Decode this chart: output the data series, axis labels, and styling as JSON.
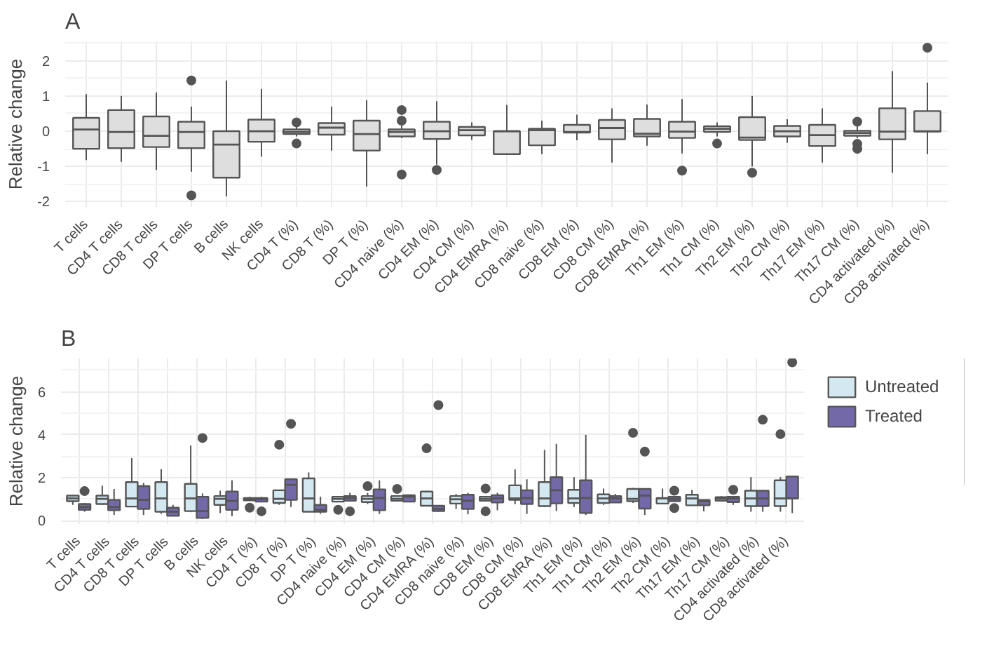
{
  "chart_data": [
    {
      "type": "box",
      "title": "A",
      "ylabel": "Relative change",
      "color": "#dedede",
      "ylim": [
        -2.15,
        2.55
      ],
      "yticks": [
        -2,
        -1,
        0,
        1,
        2
      ],
      "grid": true,
      "categories": [
        "T cells",
        "CD4 T cells",
        "CD8 T cells",
        "DP T cells",
        "B cells",
        "NK cells",
        "CD4 T (%)",
        "CD8 T (%)",
        "DP T (%)",
        "CD4 naive (%)",
        "CD4 EM (%)",
        "CD4 CM (%)",
        "CD4 EMRA (%)",
        "CD8 naive (%)",
        "CD8 EM (%)",
        "CD8 CM (%)",
        "CD8 EMRA (%)",
        "Th1 EM (%)",
        "Th1 CM (%)",
        "Th2 EM (%)",
        "Th2 CM (%)",
        "Th17 EM (%)",
        "Th17 CM (%)",
        "CD4 activated (%)",
        "CD8 activated (%)"
      ],
      "boxes": [
        {
          "low": -0.82,
          "q1": -0.5,
          "median": 0.05,
          "q3": 0.38,
          "high": 1.05
        },
        {
          "low": -0.87,
          "q1": -0.48,
          "median": -0.02,
          "q3": 0.6,
          "high": 1.0
        },
        {
          "low": -1.1,
          "q1": -0.45,
          "median": -0.13,
          "q3": 0.42,
          "high": 1.1
        },
        {
          "low": -1.15,
          "q1": -0.48,
          "median": -0.02,
          "q3": 0.27,
          "high": 0.7,
          "outliers": [
            1.44,
            -1.82
          ]
        },
        {
          "low": -1.85,
          "q1": -1.32,
          "median": -0.38,
          "q3": 0.0,
          "high": 1.44
        },
        {
          "low": -0.72,
          "q1": -0.3,
          "median": 0.0,
          "q3": 0.33,
          "high": 1.2
        },
        {
          "low": -0.15,
          "q1": -0.08,
          "median": -0.02,
          "q3": 0.05,
          "high": 0.12,
          "outliers": [
            0.25,
            -0.35
          ]
        },
        {
          "low": -0.55,
          "q1": -0.1,
          "median": 0.1,
          "q3": 0.23,
          "high": 0.7
        },
        {
          "low": -1.57,
          "q1": -0.55,
          "median": -0.08,
          "q3": 0.3,
          "high": 0.88
        },
        {
          "low": -0.2,
          "q1": -0.15,
          "median": -0.02,
          "q3": 0.05,
          "high": 0.2,
          "outliers": [
            0.6,
            0.3,
            -1.23
          ]
        },
        {
          "low": -0.95,
          "q1": -0.22,
          "median": 0.0,
          "q3": 0.27,
          "high": 0.85,
          "outliers": [
            -1.1
          ]
        },
        {
          "low": -0.25,
          "q1": -0.12,
          "median": 0.03,
          "q3": 0.12,
          "high": 0.25
        },
        {
          "low": -0.65,
          "q1": -0.65,
          "median": 0.0,
          "q3": 0.0,
          "high": 0.75
        },
        {
          "low": -0.65,
          "q1": -0.4,
          "median": 0.03,
          "q3": 0.07,
          "high": 0.3
        },
        {
          "low": -0.26,
          "q1": -0.04,
          "median": -0.02,
          "q3": 0.18,
          "high": 0.47
        },
        {
          "low": -0.89,
          "q1": -0.23,
          "median": 0.09,
          "q3": 0.32,
          "high": 0.65
        },
        {
          "low": -0.41,
          "q1": -0.15,
          "median": -0.07,
          "q3": 0.35,
          "high": 0.76
        },
        {
          "low": -0.63,
          "q1": -0.19,
          "median": -0.01,
          "q3": 0.27,
          "high": 0.91,
          "outliers": [
            -1.12
          ]
        },
        {
          "low": -0.15,
          "q1": -0.02,
          "median": 0.07,
          "q3": 0.14,
          "high": 0.25,
          "outliers": [
            -0.35
          ]
        },
        {
          "low": -1.0,
          "q1": -0.25,
          "median": -0.18,
          "q3": 0.4,
          "high": 1.0,
          "outliers": [
            -1.18
          ]
        },
        {
          "low": -0.33,
          "q1": -0.15,
          "median": 0.0,
          "q3": 0.15,
          "high": 0.34
        },
        {
          "low": -0.89,
          "q1": -0.42,
          "median": -0.11,
          "q3": 0.18,
          "high": 0.65
        },
        {
          "low": -0.2,
          "q1": -0.13,
          "median": -0.05,
          "q3": 0.01,
          "high": 0.14,
          "outliers": [
            0.27,
            -0.36,
            -0.5
          ]
        },
        {
          "low": -1.18,
          "q1": -0.23,
          "median": -0.01,
          "q3": 0.65,
          "high": 1.71
        },
        {
          "low": -0.65,
          "q1": -0.01,
          "median": 0.0,
          "q3": 0.57,
          "high": 1.38,
          "outliers": [
            2.37
          ]
        }
      ]
    },
    {
      "type": "box",
      "title": "B",
      "ylabel": "Relative change",
      "ylim": [
        -0.15,
        7.55
      ],
      "yticks": [
        0,
        2,
        4,
        6
      ],
      "grid": true,
      "legend": "right",
      "categories": [
        "T cells",
        "CD4 T cells",
        "CD8 T cells",
        "DP T cells",
        "B cells",
        "NK cells",
        "CD4 T (%)",
        "CD8 T (%)",
        "DP T (%)",
        "CD4 naive (%)",
        "CD4 EM (%)",
        "CD4 CM (%)",
        "CD4 EMRA (%)",
        "CD8 naive (%)",
        "CD8 EM (%)",
        "CD8 CM (%)",
        "CD8 EMRA (%)",
        "Th1 EM (%)",
        "Th1 CM (%)",
        "Th2 EM (%)",
        "Th2 CM (%)",
        "Th17 EM (%)",
        "Th17 CM (%)",
        "CD4 activated (%)",
        "CD8 activated (%)"
      ],
      "series": [
        {
          "name": "Untreated",
          "color": "#d3e8f0",
          "boxes": [
            {
              "low": 0.74,
              "q1": 0.91,
              "median": 1.04,
              "q3": 1.17,
              "high": 1.2
            },
            {
              "low": 0.74,
              "q1": 0.78,
              "median": 1.02,
              "q3": 1.17,
              "high": 1.63
            },
            {
              "low": 0.66,
              "q1": 0.66,
              "median": 1.04,
              "q3": 1.8,
              "high": 2.92
            },
            {
              "low": 0.32,
              "q1": 0.42,
              "median": 1.04,
              "q3": 1.8,
              "high": 2.4
            },
            {
              "low": 0.4,
              "q1": 0.45,
              "median": 1.04,
              "q3": 1.72,
              "high": 3.5
            },
            {
              "low": 0.36,
              "q1": 0.74,
              "median": 1.02,
              "q3": 1.15,
              "high": 1.4
            },
            {
              "low": 0.93,
              "q1": 0.95,
              "median": 1.02,
              "q3": 1.06,
              "high": 1.12,
              "outliers": [
                0.61
              ]
            },
            {
              "low": 0.74,
              "q1": 0.83,
              "median": 1.02,
              "q3": 1.42,
              "high": 1.42,
              "outliers": [
                3.54
              ]
            },
            {
              "low": 0.42,
              "q1": 0.42,
              "median": 1.04,
              "q3": 1.97,
              "high": 2.25
            },
            {
              "low": 0.89,
              "q1": 0.89,
              "median": 1.02,
              "q3": 1.12,
              "high": 1.15,
              "outliers": [
                0.51
              ]
            },
            {
              "low": 0.78,
              "q1": 0.87,
              "median": 1.02,
              "q3": 1.15,
              "high": 1.3,
              "outliers": [
                1.61
              ]
            },
            {
              "low": 0.93,
              "q1": 0.93,
              "median": 1.02,
              "q3": 1.15,
              "high": 1.15,
              "outliers": [
                1.48
              ]
            },
            {
              "low": 0.7,
              "q1": 0.7,
              "median": 1.04,
              "q3": 1.36,
              "high": 1.36,
              "outliers": [
                3.37
              ]
            },
            {
              "low": 0.55,
              "q1": 0.8,
              "median": 1.0,
              "q3": 1.15,
              "high": 1.25
            },
            {
              "low": 0.93,
              "q1": 0.93,
              "median": 1.02,
              "q3": 1.12,
              "high": 1.12,
              "outliers": [
                1.5,
                0.44
              ]
            },
            {
              "low": 0.78,
              "q1": 0.97,
              "median": 1.04,
              "q3": 1.65,
              "high": 2.39
            },
            {
              "low": 0.64,
              "q1": 0.68,
              "median": 1.04,
              "q3": 1.8,
              "high": 3.3
            },
            {
              "low": 0.64,
              "q1": 0.83,
              "median": 1.04,
              "q3": 1.44,
              "high": 2.03
            },
            {
              "low": 0.74,
              "q1": 0.83,
              "median": 1.04,
              "q3": 1.23,
              "high": 1.5
            },
            {
              "low": 0.83,
              "q1": 0.91,
              "median": 1.02,
              "q3": 1.48,
              "high": 1.53,
              "outliers": [
                4.09
              ]
            },
            {
              "low": 0.8,
              "q1": 0.8,
              "median": 1.04,
              "q3": 1.06,
              "high": 1.5
            },
            {
              "low": 0.72,
              "q1": 0.72,
              "median": 1.04,
              "q3": 1.21,
              "high": 1.44
            },
            {
              "low": 0.93,
              "q1": 0.93,
              "median": 1.02,
              "q3": 1.1,
              "high": 1.15
            },
            {
              "low": 0.42,
              "q1": 0.68,
              "median": 1.04,
              "q3": 1.4,
              "high": 2.03
            },
            {
              "low": 0.42,
              "q1": 0.68,
              "median": 1.04,
              "q3": 1.88,
              "high": 2.03,
              "outliers": [
                4.03
              ]
            }
          ]
        },
        {
          "name": "Treated",
          "color": "#7469a8",
          "boxes": [
            {
              "low": 0.42,
              "q1": 0.51,
              "median": 0.64,
              "q3": 0.78,
              "high": 0.83,
              "outliers": [
                1.38
              ]
            },
            {
              "low": 0.27,
              "q1": 0.49,
              "median": 0.64,
              "q3": 0.97,
              "high": 1.48
            },
            {
              "low": 0.27,
              "q1": 0.55,
              "median": 0.97,
              "q3": 1.61,
              "high": 1.76
            },
            {
              "low": 0.21,
              "q1": 0.23,
              "median": 0.42,
              "q3": 0.61,
              "high": 0.74
            },
            {
              "low": 0.08,
              "q1": 0.13,
              "median": 0.45,
              "q3": 1.12,
              "high": 1.27,
              "outliers": [
                3.85
              ]
            },
            {
              "low": 0.21,
              "q1": 0.51,
              "median": 0.93,
              "q3": 1.36,
              "high": 1.88
            },
            {
              "low": 0.89,
              "q1": 0.89,
              "median": 1.0,
              "q3": 1.06,
              "high": 1.12,
              "outliers": [
                0.44
              ]
            },
            {
              "low": 0.64,
              "q1": 0.97,
              "median": 1.67,
              "q3": 1.93,
              "high": 1.93,
              "outliers": [
                4.51
              ]
            },
            {
              "low": 0.32,
              "q1": 0.42,
              "median": 0.51,
              "q3": 0.74,
              "high": 1.12
            },
            {
              "low": 0.89,
              "q1": 0.93,
              "median": 1.06,
              "q3": 1.15,
              "high": 1.3,
              "outliers": [
                0.44
              ]
            },
            {
              "low": 0.32,
              "q1": 0.49,
              "median": 1.06,
              "q3": 1.46,
              "high": 1.88
            },
            {
              "low": 0.89,
              "q1": 0.89,
              "median": 1.12,
              "q3": 1.19,
              "high": 1.19
            },
            {
              "low": 0.42,
              "q1": 0.45,
              "median": 0.55,
              "q3": 0.7,
              "high": 0.7,
              "outliers": [
                5.38
              ]
            },
            {
              "low": 0.3,
              "q1": 0.55,
              "median": 0.93,
              "q3": 1.21,
              "high": 1.3
            },
            {
              "low": 0.49,
              "q1": 0.85,
              "median": 1.04,
              "q3": 1.19,
              "high": 1.3
            },
            {
              "low": 0.32,
              "q1": 0.78,
              "median": 1.06,
              "q3": 1.42,
              "high": 1.93
            },
            {
              "low": 0.45,
              "q1": 0.81,
              "median": 1.42,
              "q3": 2.03,
              "high": 3.58
            },
            {
              "low": 0.27,
              "q1": 0.36,
              "median": 1.06,
              "q3": 1.88,
              "high": 4.0
            },
            {
              "low": 0.85,
              "q1": 0.85,
              "median": 1.04,
              "q3": 1.15,
              "high": 1.25
            },
            {
              "low": 0.27,
              "q1": 0.57,
              "median": 1.17,
              "q3": 1.48,
              "high": 1.48,
              "outliers": [
                3.22
              ]
            },
            {
              "low": 0.91,
              "q1": 0.91,
              "median": 1.02,
              "q3": 1.12,
              "high": 1.12,
              "outliers": [
                1.4,
                0.59
              ]
            },
            {
              "low": 0.44,
              "q1": 0.72,
              "median": 0.91,
              "q3": 0.97,
              "high": 0.97
            },
            {
              "low": 0.74,
              "q1": 0.87,
              "median": 1.04,
              "q3": 1.12,
              "high": 1.12,
              "outliers": [
                1.44
              ]
            },
            {
              "low": 0.42,
              "q1": 0.68,
              "median": 1.04,
              "q3": 1.4,
              "high": 1.4,
              "outliers": [
                4.7
              ]
            },
            {
              "low": 0.36,
              "q1": 1.04,
              "median": 1.04,
              "q3": 2.06,
              "high": 2.06,
              "outliers": [
                7.37
              ]
            }
          ]
        }
      ]
    }
  ]
}
